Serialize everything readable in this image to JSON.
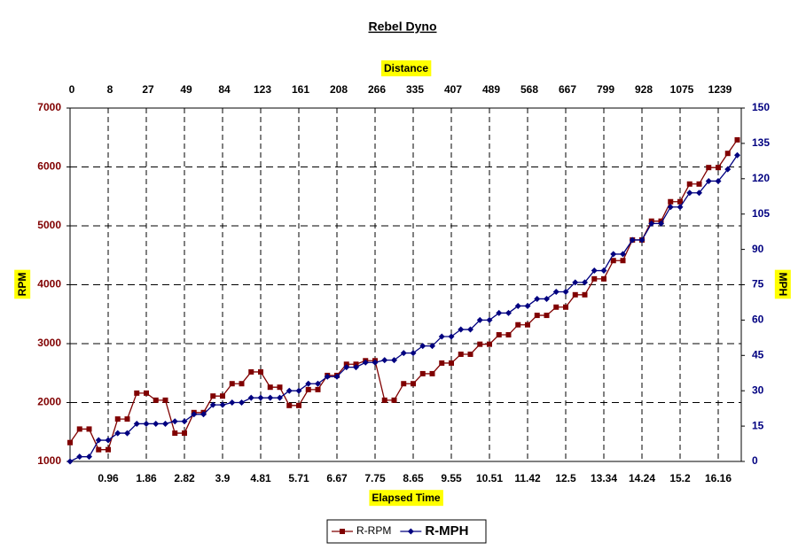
{
  "chart_data": {
    "type": "line",
    "title": "Rebel Dyno",
    "x_label": "Elapsed Time",
    "x2_label": "Distance",
    "y_label": "RPM",
    "y2_label": "MPH",
    "categories": [
      null,
      null,
      null,
      null,
      "0.96",
      null,
      null,
      null,
      "1.86",
      null,
      null,
      null,
      "2.82",
      null,
      null,
      null,
      "3.9",
      null,
      null,
      null,
      "4.81",
      null,
      null,
      null,
      "5.71",
      null,
      null,
      null,
      "6.67",
      null,
      null,
      null,
      "7.75",
      null,
      null,
      null,
      "8.65",
      null,
      null,
      null,
      "9.55",
      null,
      null,
      null,
      "10.51",
      null,
      null,
      null,
      "11.42",
      null,
      null,
      null,
      "12.5",
      null,
      null,
      null,
      "13.34",
      null,
      null,
      null,
      "14.24",
      null,
      null,
      null,
      "15.2",
      null,
      null,
      null,
      "16.16",
      null,
      null
    ],
    "x2_categories": [
      "0",
      null,
      null,
      null,
      "8",
      null,
      null,
      null,
      "27",
      null,
      null,
      null,
      "49",
      null,
      null,
      null,
      "84",
      null,
      null,
      null,
      "123",
      null,
      null,
      null,
      "161",
      null,
      null,
      null,
      "208",
      null,
      null,
      null,
      "266",
      null,
      null,
      null,
      "335",
      null,
      null,
      null,
      "407",
      null,
      null,
      null,
      "489",
      null,
      null,
      null,
      "568",
      null,
      null,
      null,
      "667",
      null,
      null,
      null,
      "799",
      null,
      null,
      null,
      "928",
      null,
      null,
      null,
      "1075",
      null,
      null,
      null,
      "1239",
      null,
      null
    ],
    "ylim": [
      1000,
      7000
    ],
    "yticks": [
      1000,
      2000,
      3000,
      4000,
      5000,
      6000,
      7000
    ],
    "y2lim": [
      0,
      150
    ],
    "y2ticks": [
      0,
      15,
      30,
      45,
      60,
      75,
      90,
      105,
      120,
      135,
      150
    ],
    "grid": true,
    "series": [
      {
        "name": "R-RPM",
        "color": "#800000",
        "marker": "square",
        "values": [
          1320,
          1550,
          1550,
          1200,
          1200,
          1720,
          1720,
          2160,
          2160,
          2040,
          2040,
          1480,
          1480,
          1830,
          1830,
          2110,
          2110,
          2320,
          2320,
          2520,
          2520,
          2260,
          2260,
          1950,
          1950,
          2220,
          2220,
          2460,
          2460,
          2650,
          2650,
          2710,
          2710,
          2040,
          2040,
          2320,
          2320,
          2490,
          2490,
          2670,
          2670,
          2820,
          2820,
          2990,
          2990,
          3150,
          3150,
          3320,
          3320,
          3480,
          3480,
          3620,
          3620,
          3830,
          3830,
          4100,
          4100,
          4410,
          4410,
          4760,
          4760,
          5080,
          5080,
          5410,
          5410,
          5710,
          5710,
          5990,
          5990,
          6230,
          6460
        ]
      },
      {
        "name": "R-MPH",
        "color": "#000080",
        "marker": "diamond",
        "axis": "y2",
        "values": [
          0,
          2,
          2,
          9,
          9,
          12,
          12,
          16,
          16,
          16,
          16,
          17,
          17,
          20,
          20,
          24,
          24,
          25,
          25,
          27,
          27,
          27,
          27,
          30,
          30,
          33,
          33,
          36,
          36,
          40,
          40,
          42,
          42,
          43,
          43,
          46,
          46,
          49,
          49,
          53,
          53,
          56,
          56,
          60,
          60,
          63,
          63,
          66,
          66,
          69,
          69,
          72,
          72,
          76,
          76,
          81,
          81,
          88,
          88,
          94,
          94,
          101,
          101,
          108,
          108,
          114,
          114,
          119,
          119,
          124,
          130
        ]
      }
    ]
  }
}
